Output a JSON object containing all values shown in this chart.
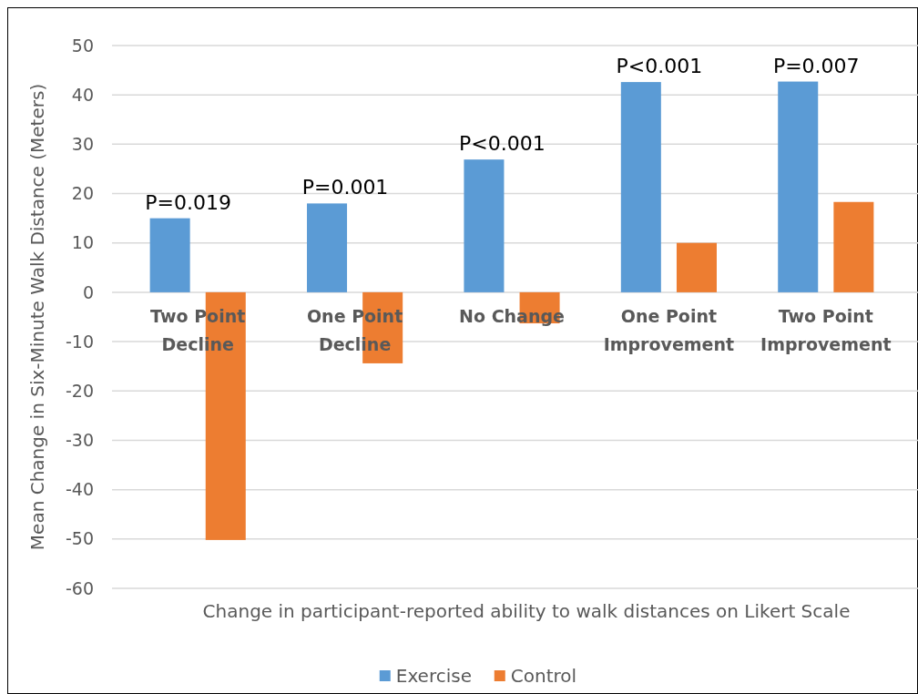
{
  "chart_data": {
    "type": "bar",
    "xlabel": "Change in participant-reported ability to walk distances on Likert Scale",
    "ylabel": "Mean Change in Six-Minute Walk Distance (Meters)",
    "categories": [
      "Two Point Decline",
      "One Point Decline",
      "No Change",
      "One Point Improvement",
      "Two Point Improvement"
    ],
    "series": [
      {
        "name": "Exercise",
        "color": "#5b9bd5",
        "values": [
          15,
          18,
          26.9,
          42.6,
          42.7
        ]
      },
      {
        "name": "Control",
        "color": "#ed7d31",
        "values": [
          -50.2,
          -14.4,
          -6.3,
          10,
          18.3
        ]
      }
    ],
    "ylim": [
      -60,
      50
    ],
    "yticks": [
      -60,
      -50,
      -40,
      -30,
      -20,
      -10,
      0,
      10,
      20,
      30,
      40,
      50
    ],
    "grid": "y",
    "legend": "bottom",
    "annotations": [
      "P=0.019",
      "P=0.001",
      "P<0.001",
      "P<0.001",
      "P=0.007"
    ]
  }
}
